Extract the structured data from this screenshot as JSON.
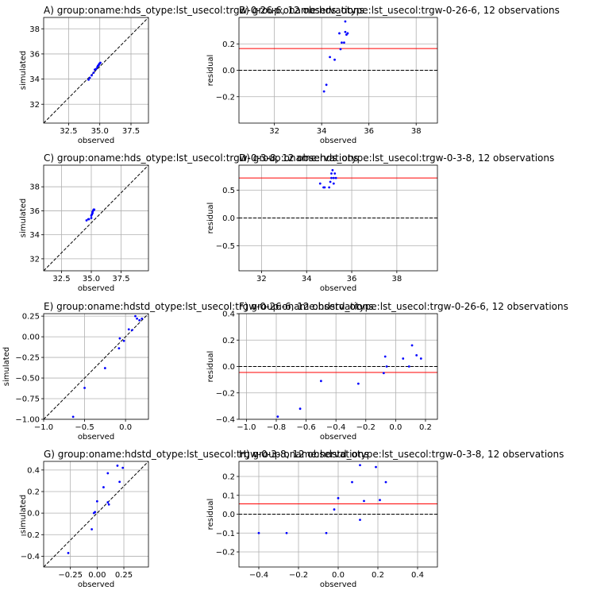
{
  "chart_data": [
    {
      "type": "scatter",
      "title": "A) group:oname:hds_otype:lst_usecol:trgw-0-26-6, 12 observations",
      "xlabel": "observed",
      "ylabel": "simulated",
      "xlim": [
        30.5,
        38.9
      ],
      "ylim": [
        30.5,
        38.9
      ],
      "xticks": [
        32.5,
        35.0,
        37.5
      ],
      "xtick_labels": [
        "32.5",
        "35.0",
        "37.5"
      ],
      "yticks": [
        32,
        34,
        36,
        38
      ],
      "ytick_labels": [
        "32",
        "34",
        "36",
        "38"
      ],
      "grid": true,
      "reference_line": {
        "kind": "one-to-one",
        "style": "dashed",
        "color": "#000000"
      },
      "points": {
        "color": "#0000ff",
        "x": [
          34.1,
          34.2,
          34.35,
          34.5,
          34.6,
          34.7,
          34.8,
          34.85,
          34.9,
          34.95,
          35.0,
          35.05
        ],
        "y": [
          33.95,
          34.1,
          34.3,
          34.5,
          34.75,
          34.8,
          34.95,
          35.05,
          35.1,
          35.2,
          35.25,
          35.3
        ]
      }
    },
    {
      "type": "scatter",
      "title": "B) group:oname:hds_otype:lst_usecol:trgw-0-26-6, 12 observations",
      "xlabel": "observed",
      "ylabel": "residual",
      "xlim": [
        30.5,
        38.9
      ],
      "ylim": [
        -0.4,
        0.4
      ],
      "xticks": [
        32,
        34,
        36,
        38
      ],
      "xtick_labels": [
        "32",
        "34",
        "36",
        "38"
      ],
      "yticks": [
        -0.2,
        0.0,
        0.2
      ],
      "ytick_labels": [
        "−0.2",
        "0.0",
        "0.2"
      ],
      "grid": true,
      "reference_line": {
        "kind": "zero",
        "style": "dashed",
        "color": "#000000"
      },
      "mean_line": {
        "y": 0.165,
        "color": "#ff0000"
      },
      "points": {
        "color": "#0000ff",
        "x": [
          34.1,
          34.2,
          34.35,
          34.55,
          34.75,
          34.8,
          34.85,
          34.95,
          35.0,
          35.0,
          35.05,
          35.1
        ],
        "y": [
          -0.16,
          -0.11,
          0.1,
          0.08,
          0.28,
          0.16,
          0.21,
          0.21,
          0.29,
          0.37,
          0.27,
          0.28
        ]
      }
    },
    {
      "type": "scatter",
      "title": "C) group:oname:hds_otype:lst_usecol:trgw-0-3-8, 12 observations",
      "xlabel": "observed",
      "ylabel": "simulated",
      "xlim": [
        31.0,
        39.8
      ],
      "ylim": [
        31.0,
        39.8
      ],
      "xticks": [
        32.5,
        35.0,
        37.5
      ],
      "xtick_labels": [
        "32.5",
        "35.0",
        "37.5"
      ],
      "yticks": [
        32,
        34,
        36,
        38
      ],
      "ytick_labels": [
        "32",
        "34",
        "36",
        "38"
      ],
      "grid": true,
      "reference_line": {
        "kind": "one-to-one",
        "style": "dashed",
        "color": "#000000"
      },
      "points": {
        "color": "#0000ff",
        "x": [
          34.6,
          34.75,
          34.8,
          35.0,
          35.0,
          35.05,
          35.1,
          35.1,
          35.15,
          35.2,
          35.2,
          35.25
        ],
        "y": [
          35.2,
          35.3,
          35.3,
          35.4,
          35.6,
          35.7,
          35.8,
          35.9,
          36.0,
          36.05,
          36.1,
          36.1
        ]
      }
    },
    {
      "type": "scatter",
      "title": "D) group:oname:hds_otype:lst_usecol:trgw-0-3-8, 12 observations",
      "xlabel": "observed",
      "ylabel": "residual",
      "xlim": [
        31.0,
        39.8
      ],
      "ylim": [
        -0.95,
        0.95
      ],
      "xticks": [
        32,
        34,
        36,
        38
      ],
      "xtick_labels": [
        "32",
        "34",
        "36",
        "38"
      ],
      "yticks": [
        -0.5,
        0.0,
        0.5
      ],
      "ytick_labels": [
        "−0.5",
        "0.0",
        "0.5"
      ],
      "grid": true,
      "reference_line": {
        "kind": "zero",
        "style": "dashed",
        "color": "#000000"
      },
      "mean_line": {
        "y": 0.72,
        "color": "#ff0000"
      },
      "points": {
        "color": "#0000ff",
        "x": [
          34.6,
          34.75,
          34.8,
          35.0,
          35.05,
          35.1,
          35.1,
          35.15,
          35.2,
          35.2,
          35.25,
          35.3
        ],
        "y": [
          0.62,
          0.55,
          0.55,
          0.55,
          0.65,
          0.72,
          0.8,
          0.86,
          0.62,
          0.72,
          0.8,
          0.72
        ]
      }
    },
    {
      "type": "scatter",
      "title": "E) group:oname:hdstd_otype:lst_usecol:trgw-0-26-6, 12 observations",
      "xlabel": "observed",
      "ylabel": "simulated",
      "xlim": [
        -1.0,
        0.28
      ],
      "ylim": [
        -1.0,
        0.28
      ],
      "xticks": [
        -1.0,
        -0.5,
        0.0
      ],
      "xtick_labels": [
        "−1.0",
        "−0.5",
        "0.0"
      ],
      "yticks": [
        -1.0,
        -0.75,
        -0.5,
        -0.25,
        0.0,
        0.25
      ],
      "ytick_labels": [
        "−1.00",
        "−0.75",
        "−0.50",
        "−0.25",
        "0.00",
        "0.25"
      ],
      "grid": true,
      "reference_line": {
        "kind": "one-to-one",
        "style": "dashed",
        "color": "#000000"
      },
      "points": {
        "color": "#0000ff",
        "x": [
          -0.64,
          -0.5,
          -0.25,
          -0.08,
          -0.07,
          -0.02,
          0.04,
          0.08,
          0.12,
          0.14,
          0.17,
          0.2
        ],
        "y": [
          -0.97,
          -0.62,
          -0.38,
          -0.14,
          -0.02,
          -0.05,
          0.09,
          0.08,
          0.25,
          0.22,
          0.2,
          0.22
        ]
      }
    },
    {
      "type": "scatter",
      "title": "F) group:oname:hdstd_otype:lst_usecol:trgw-0-26-6, 12 observations",
      "xlabel": "observed",
      "ylabel": "residual",
      "xlim": [
        -1.05,
        0.28
      ],
      "ylim": [
        -0.4,
        0.4
      ],
      "xticks": [
        -1.0,
        -0.8,
        -0.6,
        -0.4,
        -0.2,
        0.0,
        0.2
      ],
      "xtick_labels": [
        "−1.0",
        "−0.8",
        "−0.6",
        "−0.4",
        "−0.2",
        "0.0",
        "0.2"
      ],
      "yticks": [
        -0.4,
        -0.2,
        0.0,
        0.2,
        0.4
      ],
      "ytick_labels": [
        "−0.4",
        "−0.2",
        "0.0",
        "0.2",
        "0.4"
      ],
      "grid": true,
      "reference_line": {
        "kind": "zero",
        "style": "dashed",
        "color": "#000000"
      },
      "mean_line": {
        "y": -0.045,
        "color": "#ff0000"
      },
      "points": {
        "color": "#0000ff",
        "x": [
          -0.79,
          -0.64,
          -0.5,
          -0.25,
          -0.08,
          -0.07,
          -0.06,
          0.05,
          0.09,
          0.11,
          0.14,
          0.17
        ],
        "y": [
          -0.38,
          -0.32,
          -0.11,
          -0.13,
          -0.05,
          0.075,
          0.0,
          0.06,
          0.0,
          0.16,
          0.085,
          0.06
        ]
      }
    },
    {
      "type": "scatter",
      "title": "G) group:oname:hdstd_otype:lst_usecol:trgw-0-3-8, 12 observations",
      "xlabel": "observed",
      "ylabel": "simulated",
      "xlim": [
        -0.5,
        0.48
      ],
      "ylim": [
        -0.5,
        0.48
      ],
      "xticks": [
        -0.25,
        0.0,
        0.25
      ],
      "xtick_labels": [
        "−0.25",
        "0.00",
        "0.25"
      ],
      "yticks": [
        -0.4,
        -0.2,
        0.0,
        0.2,
        0.4
      ],
      "ytick_labels": [
        "−0.4",
        "−0.2",
        "0.0",
        "0.2",
        "0.4"
      ],
      "grid": true,
      "reference_line": {
        "kind": "one-to-one",
        "style": "dashed",
        "color": "#000000"
      },
      "points": {
        "color": "#0000ff",
        "x": [
          -0.27,
          -0.05,
          -0.03,
          0.0,
          0.06,
          0.1,
          0.11,
          0.19,
          0.21,
          0.24,
          0.1,
          -0.02
        ],
        "y": [
          -0.37,
          -0.15,
          0.0,
          0.11,
          0.24,
          0.37,
          0.08,
          0.44,
          0.29,
          0.42,
          0.1,
          0.01
        ]
      }
    },
    {
      "type": "scatter",
      "title": "H) group:oname:hdstd_otype:lst_usecol:trgw-0-3-8, 12 observations",
      "xlabel": "observed",
      "ylabel": "residual",
      "xlim": [
        -0.5,
        0.5
      ],
      "ylim": [
        -0.28,
        0.28
      ],
      "xticks": [
        -0.4,
        -0.2,
        0.0,
        0.2,
        0.4
      ],
      "xtick_labels": [
        "−0.4",
        "−0.2",
        "0.0",
        "0.2",
        "0.4"
      ],
      "yticks": [
        -0.2,
        -0.1,
        0.0,
        0.1,
        0.2
      ],
      "ytick_labels": [
        "−0.2",
        "−0.1",
        "0.0",
        "0.1",
        "0.2"
      ],
      "grid": true,
      "reference_line": {
        "kind": "zero",
        "style": "dashed",
        "color": "#000000"
      },
      "mean_line": {
        "y": 0.055,
        "color": "#ff0000"
      },
      "points": {
        "color": "#0000ff",
        "x": [
          -0.4,
          -0.26,
          -0.06,
          -0.02,
          0.0,
          0.07,
          0.11,
          0.19,
          0.21,
          0.24,
          0.11,
          0.13
        ],
        "y": [
          -0.1,
          -0.1,
          -0.1,
          0.025,
          0.085,
          0.17,
          -0.03,
          0.25,
          0.075,
          0.17,
          0.26,
          0.07
        ]
      }
    }
  ]
}
